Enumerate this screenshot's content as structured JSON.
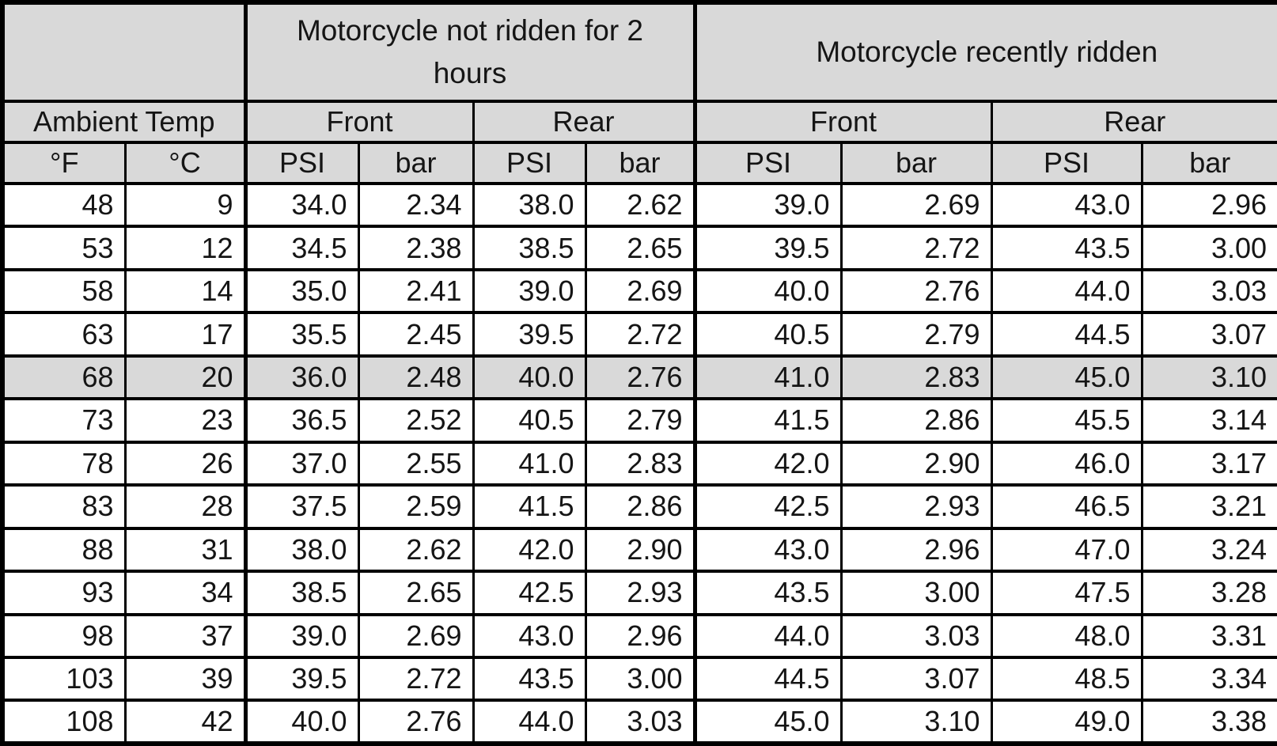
{
  "chart_data": {
    "type": "table",
    "section_headers": [
      "",
      "Motorcycle not ridden for 2 hours",
      "Motorcycle recently ridden"
    ],
    "group_headers": [
      "Ambient Temp",
      "Front",
      "Rear",
      "Front",
      "Rear"
    ],
    "unit_headers": [
      "°F",
      "°C",
      "PSI",
      "bar",
      "PSI",
      "bar",
      "PSI",
      "bar",
      "PSI",
      "bar"
    ],
    "rows": [
      [
        "48",
        "9",
        "34.0",
        "2.34",
        "38.0",
        "2.62",
        "39.0",
        "2.69",
        "43.0",
        "2.96"
      ],
      [
        "53",
        "12",
        "34.5",
        "2.38",
        "38.5",
        "2.65",
        "39.5",
        "2.72",
        "43.5",
        "3.00"
      ],
      [
        "58",
        "14",
        "35.0",
        "2.41",
        "39.0",
        "2.69",
        "40.0",
        "2.76",
        "44.0",
        "3.03"
      ],
      [
        "63",
        "17",
        "35.5",
        "2.45",
        "39.5",
        "2.72",
        "40.5",
        "2.79",
        "44.5",
        "3.07"
      ],
      [
        "68",
        "20",
        "36.0",
        "2.48",
        "40.0",
        "2.76",
        "41.0",
        "2.83",
        "45.0",
        "3.10"
      ],
      [
        "73",
        "23",
        "36.5",
        "2.52",
        "40.5",
        "2.79",
        "41.5",
        "2.86",
        "45.5",
        "3.14"
      ],
      [
        "78",
        "26",
        "37.0",
        "2.55",
        "41.0",
        "2.83",
        "42.0",
        "2.90",
        "46.0",
        "3.17"
      ],
      [
        "83",
        "28",
        "37.5",
        "2.59",
        "41.5",
        "2.86",
        "42.5",
        "2.93",
        "46.5",
        "3.21"
      ],
      [
        "88",
        "31",
        "38.0",
        "2.62",
        "42.0",
        "2.90",
        "43.0",
        "2.96",
        "47.0",
        "3.24"
      ],
      [
        "93",
        "34",
        "38.5",
        "2.65",
        "42.5",
        "2.93",
        "43.5",
        "3.00",
        "47.5",
        "3.28"
      ],
      [
        "98",
        "37",
        "39.0",
        "2.69",
        "43.0",
        "2.96",
        "44.0",
        "3.03",
        "48.0",
        "3.31"
      ],
      [
        "103",
        "39",
        "39.5",
        "2.72",
        "43.5",
        "3.00",
        "44.5",
        "3.07",
        "48.5",
        "3.34"
      ],
      [
        "108",
        "42",
        "40.0",
        "2.76",
        "44.0",
        "3.03",
        "45.0",
        "3.10",
        "49.0",
        "3.38"
      ]
    ],
    "highlight_row_index": 4,
    "layout_hints": {
      "grid": "on",
      "highlighted_row_meaning": "row shaded same gray as headers"
    },
    "colors": {
      "header_bg": "#d9d9d9",
      "highlight_bg": "#d9d9d9",
      "row_bg": "#ffffff",
      "border": "#000000"
    }
  }
}
